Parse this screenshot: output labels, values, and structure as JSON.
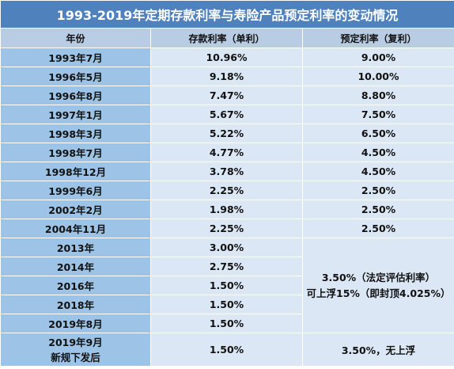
{
  "title": "1993-2019年定期存款利率与寿险产品预定利率的变动情况",
  "headers": {
    "year": "年份",
    "deposit": "存款利率（单利）",
    "preset": "预定利率（复利）"
  },
  "rows": [
    {
      "year": "1993年7月",
      "deposit": "10.96%",
      "preset": "9.00%"
    },
    {
      "year": "1996年5月",
      "deposit": "9.18%",
      "preset": "10.00%"
    },
    {
      "year": "1996年8月",
      "deposit": "7.47%",
      "preset": "8.80%"
    },
    {
      "year": "1997年1月",
      "deposit": "5.67%",
      "preset": "7.50%"
    },
    {
      "year": "1998年3月",
      "deposit": "5.22%",
      "preset": "6.50%"
    },
    {
      "year": "1998年7月",
      "deposit": "4.77%",
      "preset": "4.50%"
    },
    {
      "year": "1998年12月",
      "deposit": "3.78%",
      "preset": "4.50%"
    },
    {
      "year": "1999年6月",
      "deposit": "2.25%",
      "preset": "2.50%"
    },
    {
      "year": "2002年2月",
      "deposit": "1.98%",
      "preset": "2.50%"
    },
    {
      "year": "2004年11月",
      "deposit": "2.25%",
      "preset": "2.50%"
    },
    {
      "year": "2013年",
      "deposit": "3.00%"
    },
    {
      "year": "2014年",
      "deposit": "2.75%"
    },
    {
      "year": "2016年",
      "deposit": "1.50%"
    },
    {
      "year": "2018年",
      "deposit": "1.50%"
    },
    {
      "year": "2019年8月",
      "deposit": "1.50%"
    }
  ],
  "merged_preset": {
    "line1": "3.50%（法定评估利率）",
    "line2": "可上浮15%（即封顶4.025%）"
  },
  "last_row": {
    "year_line1": "2019年9月",
    "year_line2": "新规下发后",
    "deposit": "1.50%",
    "preset": "3.50%，无上浮"
  },
  "colors": {
    "title_bg": "#4f81bd",
    "header_bg": "#b8cce4",
    "year_bg": "#9dc3e6",
    "rate_bg": "#dbe7f4"
  }
}
